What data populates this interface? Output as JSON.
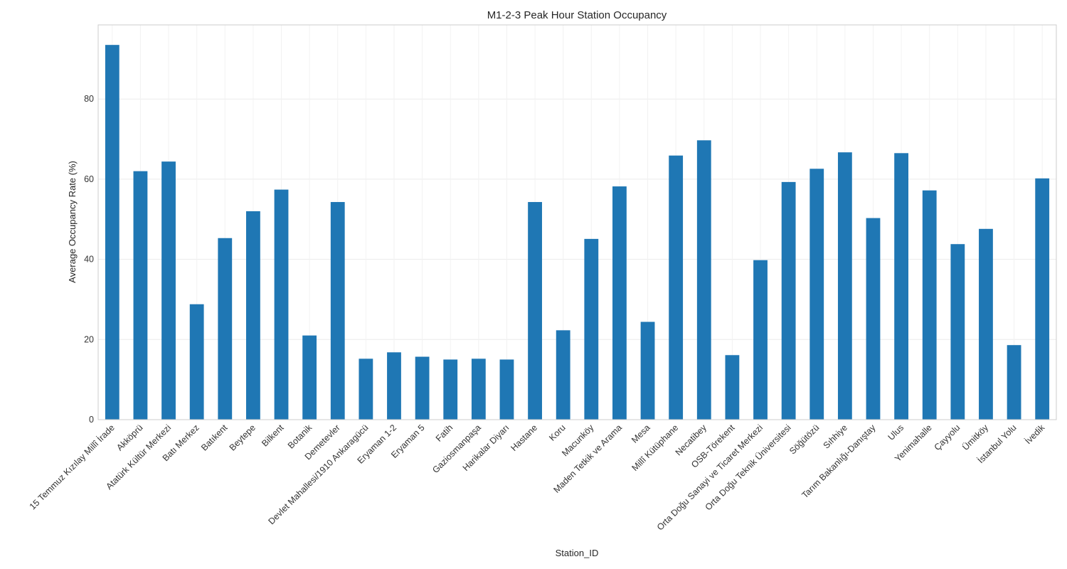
{
  "chart_data": {
    "type": "bar",
    "title": "M1-2-3 Peak Hour Station Occupancy",
    "xlabel": "Station_ID",
    "ylabel": "Average Occupancy Rate (%)",
    "ylim": [
      0,
      98.5
    ],
    "yticks": [
      0,
      20,
      40,
      60,
      80
    ],
    "grid": true,
    "color": "#1f77b4",
    "categories": [
      "15 Temmuz Kızılay Millî İrade",
      "Akköprü",
      "Atatürk Kültür Merkezi",
      "Batı Merkez",
      "Batıkent",
      "Beytepe",
      "Bilkent",
      "Botanik",
      "Demetevler",
      "Devlet Mahallesi/1910 Ankaragücü",
      "Eryaman 1-2",
      "Eryaman 5",
      "Fatih",
      "Gaziosmanpaşa",
      "Harikalar Diyarı",
      "Hastane",
      "Koru",
      "Macunköy",
      "Maden Tetkik ve Arama",
      "Mesa",
      "Millî Kütüphane",
      "Necatibey",
      "OSB-Törekent",
      "Orta Doğu Sanayi ve Ticaret Merkezi",
      "Orta Doğu Teknik Üniversitesi",
      "Söğütözü",
      "Sıhhiye",
      "Tarım Bakanlığı-Danıştay",
      "Ulus",
      "Yenimahalle",
      "Çayyolu",
      "Ümitköy",
      "İstanbul Yolu",
      "İvedik"
    ],
    "values": [
      93.5,
      62.0,
      64.4,
      28.8,
      45.3,
      52.0,
      57.4,
      21.0,
      54.3,
      15.2,
      16.8,
      15.7,
      15.0,
      15.2,
      15.0,
      54.3,
      22.3,
      45.1,
      58.2,
      24.4,
      65.9,
      69.7,
      16.1,
      39.8,
      59.3,
      62.6,
      66.7,
      50.3,
      66.5,
      57.2,
      43.8,
      47.6,
      18.6,
      60.2
    ]
  }
}
